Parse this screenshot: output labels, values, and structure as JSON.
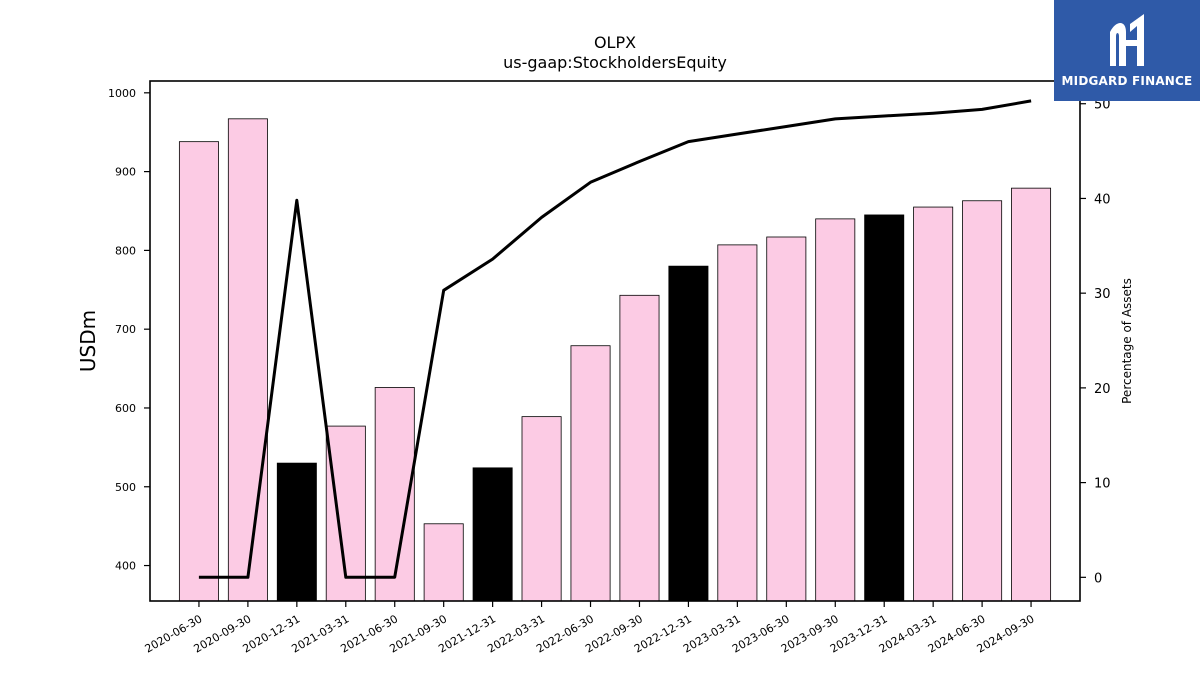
{
  "brand": {
    "name": "MIDGARD FINANCE",
    "bg_color": "#2f5aa8"
  },
  "chart_data": {
    "type": "bar",
    "title": "OLPX",
    "subtitle": "us-gaap:StockholdersEquity",
    "ylabel": "USDm",
    "y2label": "Percentage of Assets",
    "ylim": [
      355,
      1015
    ],
    "y2lim": [
      -2.5,
      52.4
    ],
    "yticks": [
      400,
      500,
      600,
      700,
      800,
      900,
      1000
    ],
    "y2ticks": [
      0,
      10,
      20,
      30,
      40,
      50
    ],
    "categories": [
      "2020-06-30",
      "2020-09-30",
      "2020-12-31",
      "2021-03-31",
      "2021-06-30",
      "2021-09-30",
      "2021-12-31",
      "2022-03-31",
      "2022-06-30",
      "2022-09-30",
      "2022-12-31",
      "2023-03-31",
      "2023-06-30",
      "2023-09-30",
      "2023-12-31",
      "2024-03-31",
      "2024-06-30",
      "2024-09-30"
    ],
    "series": [
      {
        "kind": "bar",
        "values": [
          938,
          967,
          530,
          577,
          626,
          453,
          524,
          589,
          679,
          743,
          780,
          807,
          817,
          840,
          845,
          855,
          863,
          879
        ],
        "highlight": [
          false,
          false,
          true,
          false,
          false,
          false,
          true,
          false,
          false,
          false,
          true,
          false,
          false,
          false,
          true,
          false,
          false,
          false
        ]
      },
      {
        "kind": "line",
        "axis": "right",
        "values": [
          0,
          0,
          39.8,
          0,
          0,
          30.3,
          33.6,
          38.0,
          41.7,
          43.9,
          46.0,
          46.8,
          47.6,
          48.4,
          48.7,
          49.0,
          49.4,
          50.3
        ]
      }
    ],
    "colors": {
      "bar": "#fccbe4",
      "bar_highlight": "#000000",
      "line": "#000000"
    },
    "grid": false
  }
}
